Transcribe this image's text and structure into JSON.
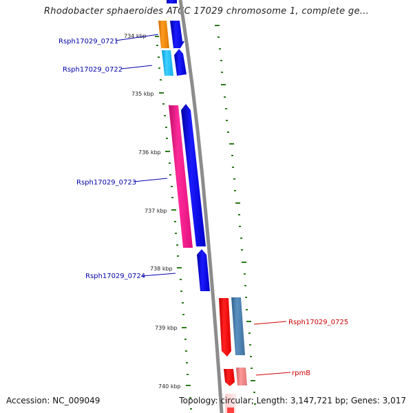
{
  "header": {
    "title": "Rhodobacter sphaeroides ATCC 17029 chromosome 1, complete ge..."
  },
  "footer": {
    "accession": "Accession: NC_009049",
    "summary": "Topology: circular; Length: 3,147,721 bp; Genes: 3,017"
  },
  "ruler": {
    "labels": [
      "734 kbp",
      "735 kbp",
      "736 kbp",
      "737 kbp",
      "738 kbp",
      "739 kbp",
      "740 kbp"
    ],
    "tick_color": "#2a7a1a"
  },
  "backbone_color": "#888888",
  "genes": [
    {
      "id": "Rsph17029_0721",
      "label": "Rsph17029_0721",
      "label_color": "#0000aa",
      "colors": [
        "#ff8c00",
        "#0000ff"
      ]
    },
    {
      "id": "Rsph17029_0722",
      "label": "Rsph17029_0722",
      "label_color": "#0000aa",
      "colors": [
        "#00bfff",
        "#0000ff"
      ]
    },
    {
      "id": "Rsph17029_0723",
      "label": "Rsph17029_0723",
      "label_color": "#0000aa",
      "colors": [
        "#ff1493",
        "#0000ff"
      ]
    },
    {
      "id": "Rsph17029_0724",
      "label": "Rsph17029_0724",
      "label_color": "#0000aa",
      "colors": [
        "#0000ff"
      ]
    },
    {
      "id": "Rsph17029_0725",
      "label": "Rsph17029_0725",
      "label_color": "#cc0000",
      "colors": [
        "#ff0000",
        "#4682b4"
      ]
    },
    {
      "id": "rpmB",
      "label": "rpmB",
      "label_color": "#cc0000",
      "colors": [
        "#ff0000",
        "#f08080"
      ]
    }
  ]
}
